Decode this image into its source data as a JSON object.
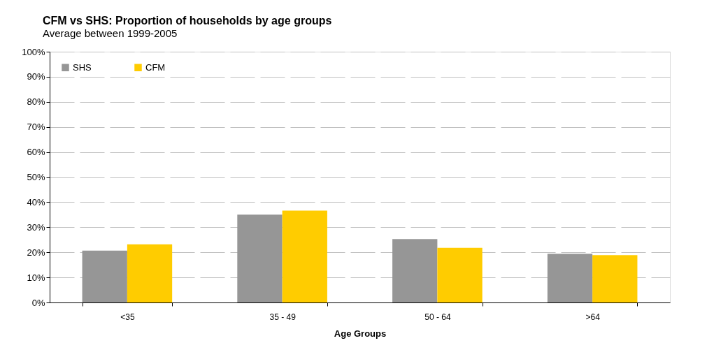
{
  "chart_data": {
    "type": "bar",
    "title": "CFM vs SHS: Proportion of households by age groups",
    "subtitle": "Average between 1999-2005",
    "xlabel": "Age Groups",
    "categories": [
      "<35",
      "35 - 49",
      "50 - 64",
      ">64"
    ],
    "series": [
      {
        "name": "SHS",
        "color": "#969696",
        "values": [
          20.7,
          35.0,
          25.3,
          19.4
        ]
      },
      {
        "name": "CFM",
        "color": "#ffcc00",
        "values": [
          23.2,
          36.6,
          21.8,
          18.9
        ]
      }
    ],
    "ylim": [
      0,
      100
    ],
    "yticks": [
      {
        "value": 0,
        "label": "0%"
      },
      {
        "value": 10,
        "label": "10%"
      },
      {
        "value": 20,
        "label": "20%"
      },
      {
        "value": 30,
        "label": "30%"
      },
      {
        "value": 40,
        "label": "40%"
      },
      {
        "value": 50,
        "label": "50%"
      },
      {
        "value": 60,
        "label": "60%"
      },
      {
        "value": 70,
        "label": "70%"
      },
      {
        "value": 80,
        "label": "80%"
      },
      {
        "value": 90,
        "label": "90%"
      },
      {
        "value": 100,
        "label": "100%"
      }
    ],
    "grid": "y",
    "legend": "top left"
  }
}
